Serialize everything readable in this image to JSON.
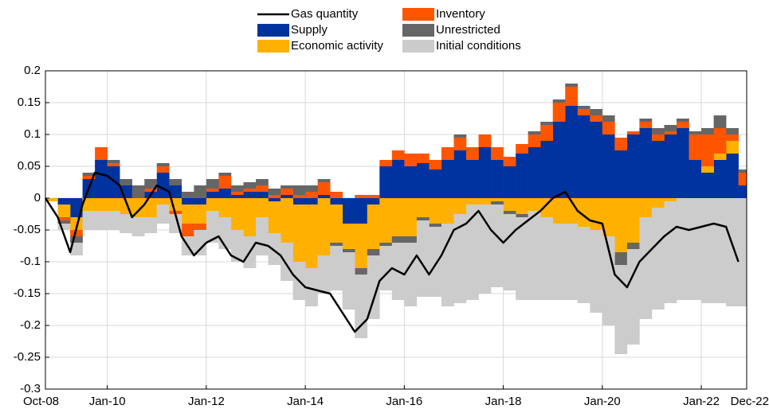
{
  "chart_data": {
    "type": "bar",
    "stacked": true,
    "x": [
      "2008-10",
      "2009-01",
      "2009-04",
      "2009-07",
      "2009-10",
      "2010-01",
      "2010-04",
      "2010-07",
      "2010-10",
      "2011-01",
      "2011-04",
      "2011-07",
      "2011-10",
      "2012-01",
      "2012-04",
      "2012-07",
      "2012-10",
      "2013-01",
      "2013-04",
      "2013-07",
      "2013-10",
      "2014-01",
      "2014-04",
      "2014-07",
      "2014-10",
      "2015-01",
      "2015-04",
      "2015-07",
      "2015-10",
      "2016-01",
      "2016-04",
      "2016-07",
      "2016-10",
      "2017-01",
      "2017-04",
      "2017-07",
      "2017-10",
      "2018-01",
      "2018-04",
      "2018-07",
      "2018-10",
      "2019-01",
      "2019-04",
      "2019-07",
      "2019-10",
      "2020-01",
      "2020-04",
      "2020-07",
      "2020-10",
      "2021-01",
      "2021-04",
      "2021-07",
      "2021-10",
      "2022-01",
      "2022-04",
      "2022-07",
      "2022-10"
    ],
    "series": [
      {
        "name": "Gas quantity",
        "type": "line",
        "color": "#000000",
        "values": [
          0,
          -0.03,
          -0.085,
          -0.01,
          0.04,
          0.035,
          0.02,
          -0.03,
          -0.01,
          0.02,
          0.01,
          -0.06,
          -0.09,
          -0.07,
          -0.06,
          -0.09,
          -0.1,
          -0.07,
          -0.075,
          -0.09,
          -0.12,
          -0.14,
          -0.145,
          -0.15,
          -0.18,
          -0.21,
          -0.19,
          -0.13,
          -0.11,
          -0.12,
          -0.09,
          -0.12,
          -0.09,
          -0.05,
          -0.04,
          -0.02,
          -0.05,
          -0.07,
          -0.05,
          -0.035,
          -0.02,
          0,
          0.01,
          -0.02,
          -0.035,
          -0.04,
          -0.12,
          -0.14,
          -0.1,
          -0.08,
          -0.06,
          -0.045,
          -0.05,
          -0.045,
          -0.04,
          -0.045,
          -0.1
        ]
      },
      {
        "name": "Supply",
        "color": "#0033a0",
        "values": [
          0,
          -0.01,
          -0.03,
          0.03,
          0.06,
          0.05,
          0.02,
          0,
          0.01,
          0.04,
          0.02,
          -0.01,
          -0.01,
          0.01,
          0.015,
          0.005,
          0.01,
          0.01,
          -0.005,
          0.005,
          -0.01,
          -0.01,
          0.005,
          -0.01,
          -0.04,
          -0.04,
          -0.01,
          0.05,
          0.06,
          0.05,
          0.055,
          0.045,
          0.06,
          0.075,
          0.06,
          0.08,
          0.06,
          0.05,
          0.07,
          0.08,
          0.09,
          0.12,
          0.145,
          0.13,
          0.12,
          0.1,
          0.075,
          0.1,
          0.11,
          0.09,
          0.1,
          0.11,
          0.06,
          0.04,
          0.06,
          0.07,
          0.02
        ]
      },
      {
        "name": "Economic activity",
        "color": "#ffb000",
        "values": [
          -0.005,
          -0.02,
          -0.02,
          -0.02,
          -0.02,
          -0.02,
          -0.025,
          -0.03,
          -0.03,
          -0.01,
          -0.02,
          -0.03,
          -0.03,
          -0.02,
          -0.03,
          -0.05,
          -0.06,
          -0.03,
          -0.05,
          -0.07,
          -0.09,
          -0.1,
          -0.09,
          -0.06,
          -0.04,
          -0.07,
          -0.07,
          -0.07,
          -0.06,
          -0.06,
          -0.03,
          -0.04,
          -0.04,
          -0.025,
          -0.01,
          -0.01,
          -0.005,
          -0.02,
          -0.025,
          -0.02,
          -0.03,
          -0.04,
          -0.04,
          -0.045,
          -0.05,
          -0.06,
          -0.085,
          -0.07,
          -0.03,
          -0.015,
          -0.005,
          0,
          0,
          0.01,
          0.01,
          0.02,
          0
        ]
      },
      {
        "name": "Inventory",
        "color": "#ff5500",
        "values": [
          0,
          -0.005,
          -0.01,
          0.005,
          0.02,
          0.005,
          0,
          0,
          0.005,
          0.01,
          -0.005,
          -0.02,
          -0.01,
          0.005,
          0.02,
          0.005,
          0.005,
          0.01,
          0.005,
          0.01,
          0.005,
          0.01,
          0.02,
          0.01,
          0,
          0.005,
          0.005,
          0.01,
          0.015,
          0.02,
          0.015,
          0.015,
          0.02,
          0.02,
          0.02,
          0.02,
          0.02,
          0.015,
          0.015,
          0.02,
          0.025,
          0.03,
          0.03,
          0.01,
          0.01,
          0.02,
          0.02,
          0.005,
          0.01,
          0.01,
          0.005,
          0.01,
          0.04,
          0.05,
          0.04,
          0.01,
          0.02
        ]
      },
      {
        "name": "Unrestricted",
        "color": "#666666",
        "values": [
          0,
          -0.005,
          -0.01,
          0.005,
          0,
          0.005,
          0.01,
          0.02,
          0.015,
          0.005,
          0.01,
          0.01,
          0.02,
          0.015,
          0.005,
          0.01,
          0.01,
          0.01,
          0.01,
          0.005,
          0.015,
          0.01,
          0.005,
          -0.005,
          -0.005,
          -0.01,
          -0.01,
          -0.005,
          -0.01,
          -0.01,
          -0.005,
          -0.005,
          0,
          0.005,
          0,
          0,
          -0.005,
          -0.005,
          -0.005,
          0.005,
          0.005,
          0.005,
          0.005,
          0.005,
          0.01,
          0.01,
          -0.02,
          -0.01,
          0.005,
          0.01,
          0.01,
          0.005,
          0.005,
          0.01,
          0.02,
          0.01,
          0.005
        ]
      },
      {
        "name": "Initial conditions",
        "color": "#cccccc",
        "values": [
          0,
          -0.01,
          -0.02,
          -0.03,
          -0.03,
          -0.03,
          -0.03,
          -0.03,
          -0.025,
          -0.03,
          -0.03,
          -0.03,
          -0.04,
          -0.05,
          -0.05,
          -0.05,
          -0.05,
          -0.06,
          -0.05,
          -0.06,
          -0.06,
          -0.06,
          -0.06,
          -0.07,
          -0.09,
          -0.1,
          -0.1,
          -0.07,
          -0.09,
          -0.1,
          -0.12,
          -0.11,
          -0.13,
          -0.14,
          -0.15,
          -0.14,
          -0.13,
          -0.12,
          -0.13,
          -0.14,
          -0.13,
          -0.12,
          -0.12,
          -0.12,
          -0.13,
          -0.14,
          -0.14,
          -0.15,
          -0.16,
          -0.16,
          -0.16,
          -0.16,
          -0.16,
          -0.165,
          -0.165,
          -0.17,
          -0.17
        ]
      }
    ],
    "xlim": [
      "2008-10",
      "2022-12"
    ],
    "xticks": [
      {
        "value": "2008-10",
        "label": "Oct-08"
      },
      {
        "value": "2010-01",
        "label": "Jan-10"
      },
      {
        "value": "2012-01",
        "label": "Jan-12"
      },
      {
        "value": "2014-01",
        "label": "Jan-14"
      },
      {
        "value": "2016-01",
        "label": "Jan-16"
      },
      {
        "value": "2018-01",
        "label": "Jan-18"
      },
      {
        "value": "2020-01",
        "label": "Jan-20"
      },
      {
        "value": "2022-01",
        "label": "Jan-22"
      },
      {
        "value": "2022-12",
        "label": "Dec-22"
      }
    ],
    "ylim": [
      -0.3,
      0.2
    ],
    "yticks": [
      -0.3,
      -0.25,
      -0.2,
      -0.15,
      -0.1,
      -0.05,
      0,
      0.05,
      0.1,
      0.15,
      0.2
    ],
    "grid": true,
    "legend": "top"
  }
}
